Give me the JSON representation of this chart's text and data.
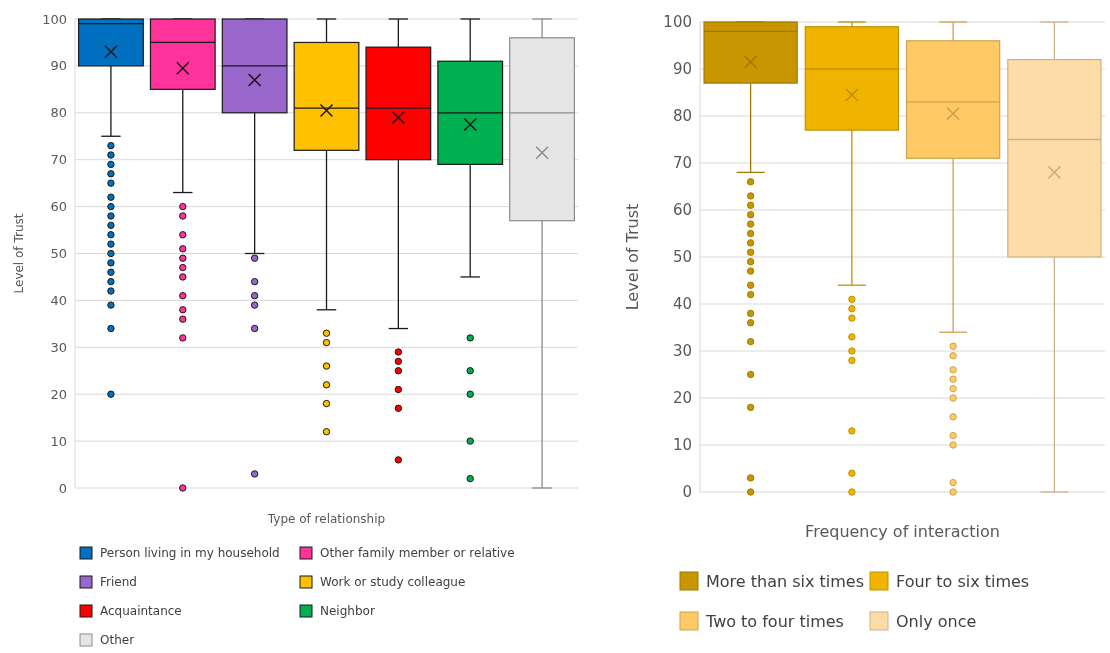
{
  "chart_data": [
    {
      "type": "box",
      "xlabel": "Type of relationship",
      "ylabel": "Level of Trust",
      "categories": [
        null,
        null,
        null,
        null,
        null,
        null,
        null
      ],
      "ylim": [
        0,
        100
      ],
      "yticks": [
        0,
        10,
        20,
        30,
        40,
        50,
        60,
        70,
        80,
        90,
        100
      ],
      "grid": "y",
      "legend": "bottom",
      "series": [
        {
          "name": "Person living in my household",
          "color": "#0070c0",
          "boxes": [
            {
              "low": 75,
              "q1": 90,
              "median": 99,
              "q3": 100,
              "high": 100,
              "mean": 93,
              "outliers": [
                73,
                71,
                69,
                67,
                65,
                62,
                60,
                58,
                56,
                54,
                52,
                50,
                48,
                46,
                44,
                42,
                39,
                34,
                20
              ]
            },
            null,
            null,
            null,
            null,
            null,
            null
          ]
        },
        {
          "name": "Other family member or relative",
          "color": "#ff3399",
          "boxes": [
            null,
            {
              "low": 63,
              "q1": 85,
              "median": 95,
              "q3": 100,
              "high": 100,
              "mean": 89.5,
              "outliers": [
                60,
                58,
                54,
                51,
                49,
                47,
                45,
                41,
                38,
                36,
                32,
                0
              ]
            },
            null,
            null,
            null,
            null,
            null
          ]
        },
        {
          "name": "Friend",
          "color": "#9966cc",
          "boxes": [
            null,
            null,
            {
              "low": 50,
              "q1": 80,
              "median": 90,
              "q3": 100,
              "high": 100,
              "mean": 87,
              "outliers": [
                49,
                44,
                41,
                39,
                34,
                3
              ]
            },
            null,
            null,
            null,
            null
          ]
        },
        {
          "name": "Work or study colleague",
          "color": "#ffc000",
          "boxes": [
            null,
            null,
            null,
            {
              "low": 38,
              "q1": 72,
              "median": 81,
              "q3": 95,
              "high": 100,
              "mean": 80.5,
              "outliers": [
                33,
                31,
                26,
                22,
                18,
                12
              ]
            },
            null,
            null,
            null
          ]
        },
        {
          "name": "Acquaintance",
          "color": "#ff0000",
          "boxes": [
            null,
            null,
            null,
            null,
            {
              "low": 34,
              "q1": 70,
              "median": 81,
              "q3": 94,
              "high": 100,
              "mean": 79,
              "outliers": [
                29,
                27,
                25,
                21,
                17,
                6
              ]
            },
            null,
            null
          ]
        },
        {
          "name": "Neighbor",
          "color": "#00b050",
          "boxes": [
            null,
            null,
            null,
            null,
            null,
            {
              "low": 45,
              "q1": 69,
              "median": 80,
              "q3": 91,
              "high": 100,
              "mean": 77.5,
              "outliers": [
                32,
                25,
                20,
                10,
                2
              ]
            },
            null
          ]
        },
        {
          "name": "Other",
          "color": "#e6e6e6",
          "boxes": [
            null,
            null,
            null,
            null,
            null,
            null,
            {
              "low": 0,
              "q1": 57,
              "median": 80,
              "q3": 96,
              "high": 100,
              "mean": 71.5
            }
          ]
        }
      ]
    },
    {
      "type": "box",
      "xlabel": "Frequency of interaction",
      "ylabel": "Level of Trust",
      "categories": [
        null,
        null,
        null,
        null
      ],
      "ylim": [
        0,
        100
      ],
      "yticks": [
        0,
        10,
        20,
        30,
        40,
        50,
        60,
        70,
        80,
        90,
        100
      ],
      "grid": "y",
      "legend": "bottom",
      "series": [
        {
          "name": "More than six times",
          "color": "#c89600",
          "boxes": [
            {
              "low": 68,
              "q1": 87,
              "median": 98,
              "q3": 100,
              "high": 100,
              "mean": 91.5,
              "outliers": [
                66,
                63,
                61,
                59,
                57,
                55,
                53,
                51,
                49,
                47,
                44,
                42,
                38,
                36,
                32,
                25,
                18,
                3,
                0
              ]
            },
            null,
            null,
            null
          ]
        },
        {
          "name": "Four to six times",
          "color": "#f0b400",
          "boxes": [
            null,
            {
              "low": 44,
              "q1": 77,
              "median": 90,
              "q3": 99,
              "high": 100,
              "mean": 84.5,
              "outliers": [
                41,
                39,
                37,
                33,
                30,
                28,
                13,
                4,
                0
              ]
            },
            null,
            null
          ]
        },
        {
          "name": "Two to four times",
          "color": "#ffc966",
          "boxes": [
            null,
            null,
            {
              "low": 34,
              "q1": 71,
              "median": 83,
              "q3": 96,
              "high": 100,
              "mean": 80.5,
              "outliers": [
                31,
                29,
                26,
                24,
                22,
                20,
                16,
                12,
                10,
                2,
                0
              ]
            },
            null
          ]
        },
        {
          "name": "Only once",
          "color": "#fddca8",
          "boxes": [
            null,
            null,
            null,
            {
              "low": 0,
              "q1": 50,
              "median": 75,
              "q3": 92,
              "high": 100,
              "mean": 68
            }
          ]
        }
      ]
    }
  ]
}
